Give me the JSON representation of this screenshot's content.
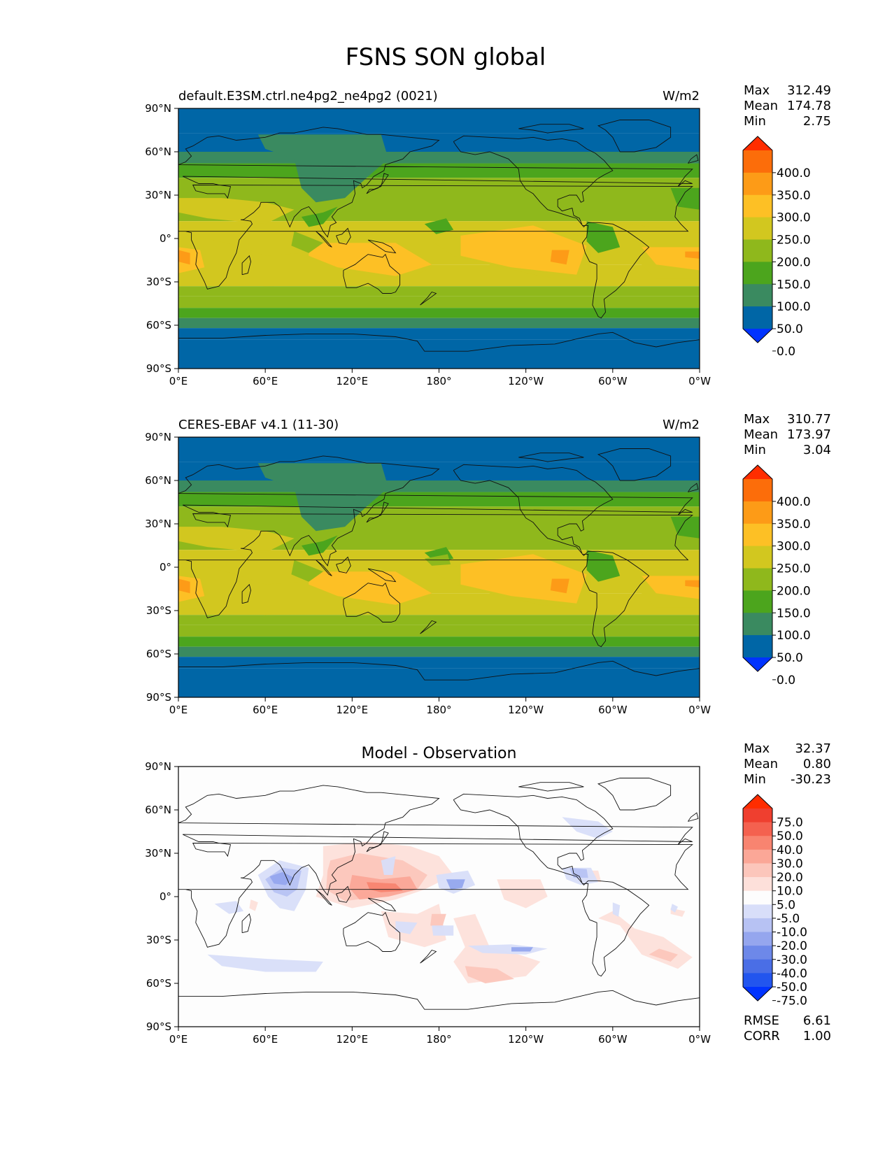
{
  "figure": {
    "title": "FSNS SON global"
  },
  "axes": {
    "lat_ticks": [
      "90°N",
      "60°N",
      "30°N",
      "0°",
      "30°S",
      "60°S",
      "90°S"
    ],
    "lon_ticks": [
      "0°E",
      "60°E",
      "120°E",
      "180°",
      "120°W",
      "60°W",
      "0°W"
    ]
  },
  "panels": [
    {
      "left_title": "default.E3SM.ctrl.ne4pg2_ne4pg2 (0021)",
      "center_title": "",
      "right_title": "W/m2",
      "stats": {
        "Max": "312.49",
        "Mean": "174.78",
        "Min": "2.75"
      },
      "colorbar_labels": [
        "400.0",
        "350.0",
        "300.0",
        "250.0",
        "200.0",
        "150.0",
        "100.0",
        "50.0",
        "0.0"
      ]
    },
    {
      "left_title": "CERES-EBAF v4.1 (11-30)",
      "center_title": "",
      "right_title": "W/m2",
      "stats": {
        "Max": "310.77",
        "Mean": "173.97",
        "Min": "3.04"
      },
      "colorbar_labels": [
        "400.0",
        "350.0",
        "300.0",
        "250.0",
        "200.0",
        "150.0",
        "100.0",
        "50.0",
        "0.0"
      ]
    },
    {
      "left_title": "",
      "center_title": "Model - Observation",
      "right_title": "",
      "stats": {
        "Max": "32.37",
        "Mean": "0.80",
        "Min": "-30.23"
      },
      "colorbar_labels": [
        "75.0",
        "50.0",
        "40.0",
        "30.0",
        "20.0",
        "10.0",
        "5.0",
        "-5.0",
        "-10.0",
        "-20.0",
        "-30.0",
        "-40.0",
        "-50.0",
        "-75.0"
      ],
      "metrics": {
        "RMSE": "6.61",
        "CORR": "1.00"
      }
    }
  ],
  "colors": {
    "abs_scale": [
      "#0033ff",
      "#0066a6",
      "#3a8a60",
      "#4ca51d",
      "#8fb81c",
      "#d2c71f",
      "#fdc025",
      "#fd9b17",
      "#fc6d0a",
      "#ff2d00"
    ],
    "diff_scale": [
      "#0033ff",
      "#2255ee",
      "#4a6ee6",
      "#6d88e9",
      "#95a6ee",
      "#b7c2f3",
      "#d8def9",
      "#fdfdfd",
      "#fde0da",
      "#fcc6bb",
      "#fba797",
      "#f88470",
      "#f4614f",
      "#ef3f2f",
      "#ff2d00"
    ]
  }
}
